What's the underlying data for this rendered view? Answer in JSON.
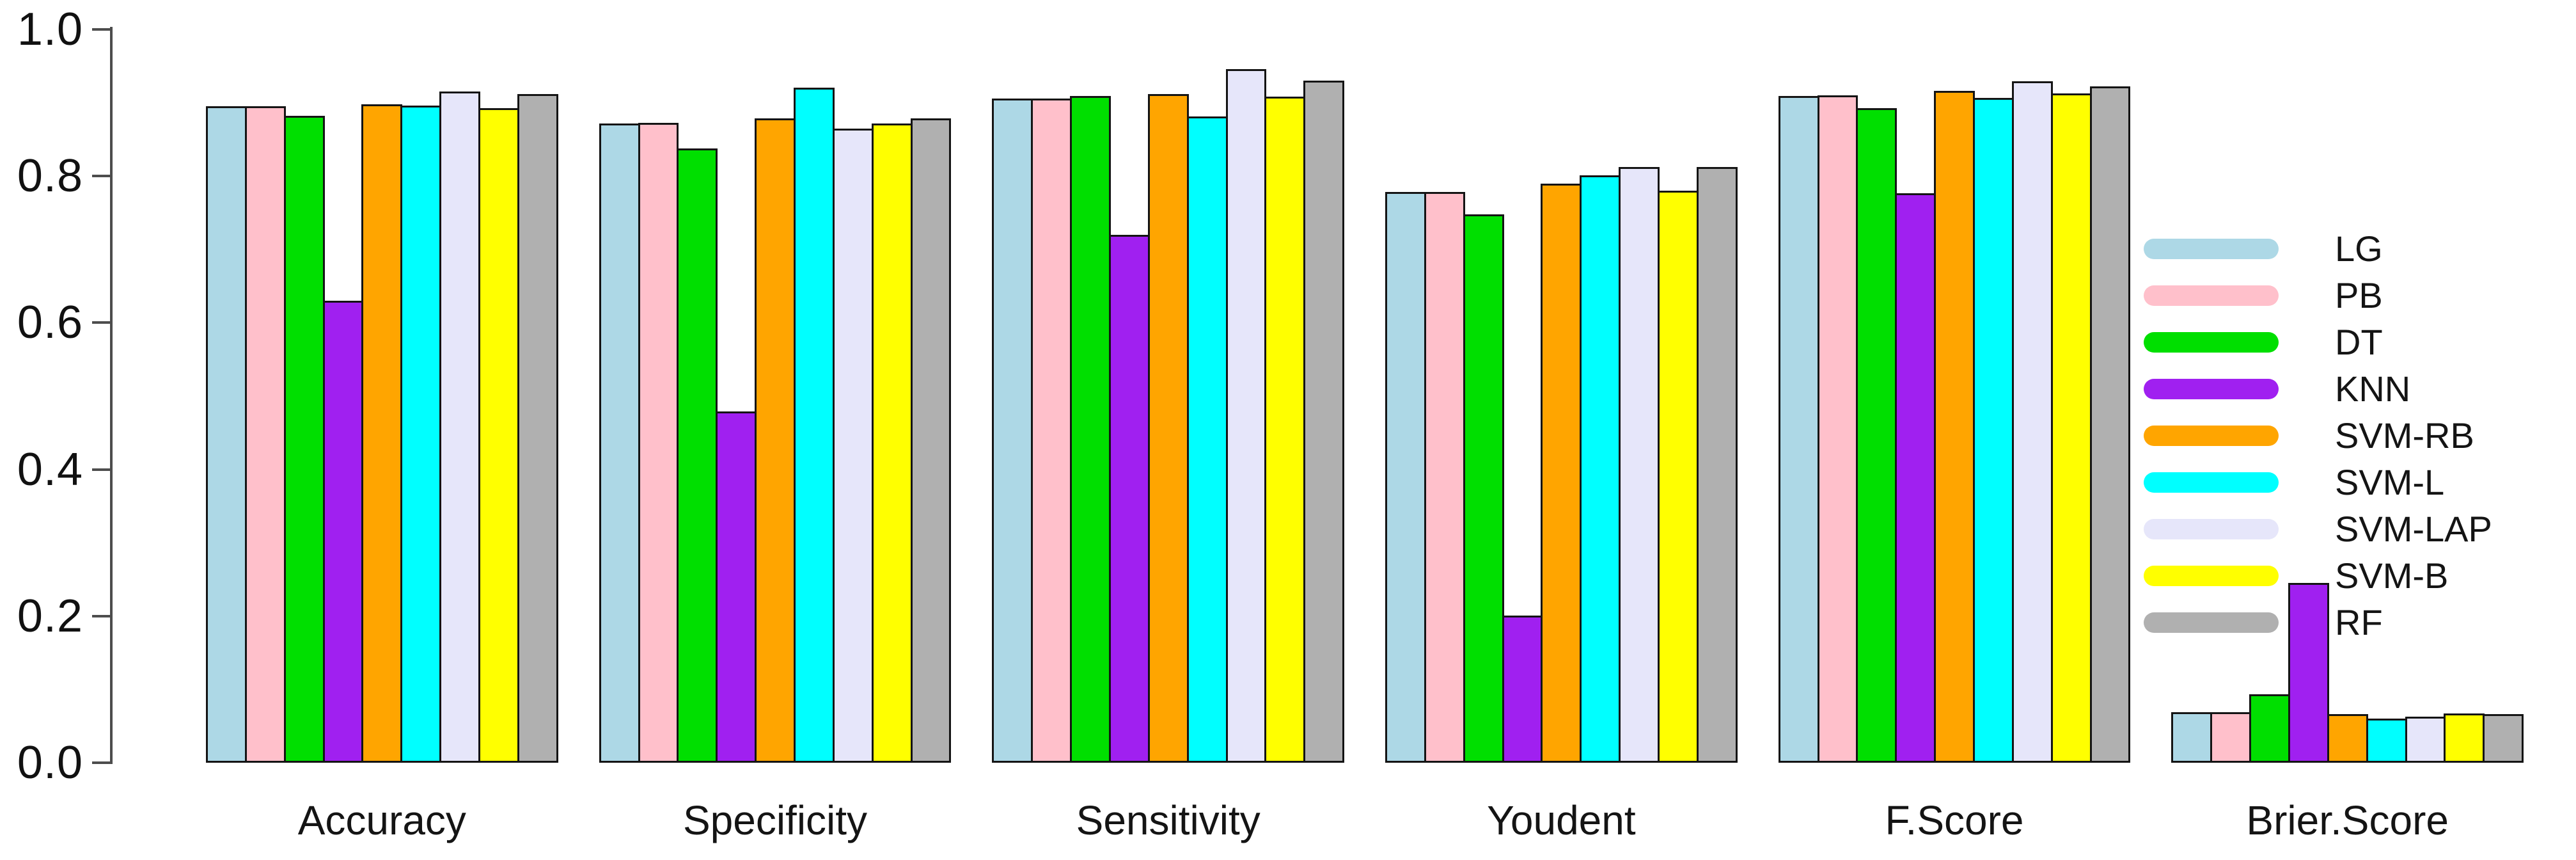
{
  "figure": {
    "background": "#FFFFFF",
    "bar_border_color": "#141414",
    "axis_color": "#4D4D4D"
  },
  "chart_data": {
    "type": "bar",
    "title": "",
    "xlabel": "",
    "ylabel": "",
    "ylim": [
      0,
      1
    ],
    "grid": false,
    "legend_position": "right",
    "yticks": [
      {
        "value": 0.0,
        "label": "0.0"
      },
      {
        "value": 0.2,
        "label": "0.2"
      },
      {
        "value": 0.4,
        "label": "0.4"
      },
      {
        "value": 0.6,
        "label": "0.6"
      },
      {
        "value": 0.8,
        "label": "0.8"
      },
      {
        "value": 1.0,
        "label": "1.0"
      }
    ],
    "categories": [
      "Accuracy",
      "Specificity",
      "Sensitivity",
      "Youdent",
      "F.Score",
      "Brier.Score"
    ],
    "series": [
      {
        "name": "LG",
        "color": "#ADD8E6",
        "values": [
          0.895,
          0.872,
          0.906,
          0.778,
          0.909,
          0.069
        ]
      },
      {
        "name": "PB",
        "color": "#FFC0CB",
        "values": [
          0.895,
          0.873,
          0.906,
          0.778,
          0.91,
          0.069
        ]
      },
      {
        "name": "DT",
        "color": "#00DF00",
        "values": [
          0.882,
          0.838,
          0.909,
          0.748,
          0.893,
          0.093
        ]
      },
      {
        "name": "KNN",
        "color": "#A020F0",
        "values": [
          0.63,
          0.479,
          0.72,
          0.201,
          0.777,
          0.245
        ]
      },
      {
        "name": "SVM-RB",
        "color": "#FFA500",
        "values": [
          0.898,
          0.879,
          0.912,
          0.79,
          0.916,
          0.066
        ]
      },
      {
        "name": "SVM-L",
        "color": "#00FFFF",
        "values": [
          0.896,
          0.921,
          0.881,
          0.801,
          0.907,
          0.06
        ]
      },
      {
        "name": "SVM-LAP",
        "color": "#E6E6FA",
        "values": [
          0.915,
          0.865,
          0.946,
          0.812,
          0.929,
          0.063
        ]
      },
      {
        "name": "SVM-B",
        "color": "#FFFF00",
        "values": [
          0.893,
          0.872,
          0.908,
          0.78,
          0.913,
          0.067
        ]
      },
      {
        "name": "RF",
        "color": "#B0B0B0",
        "values": [
          0.912,
          0.879,
          0.93,
          0.812,
          0.922,
          0.066
        ]
      }
    ]
  }
}
